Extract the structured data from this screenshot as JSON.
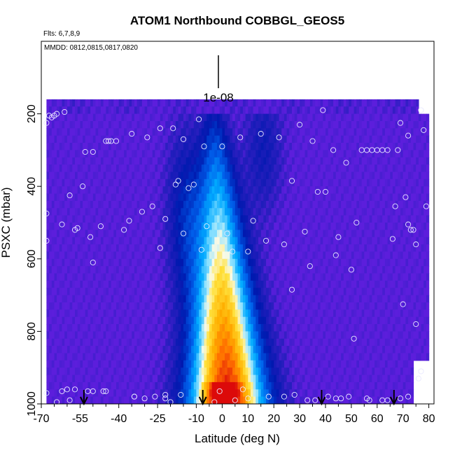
{
  "chart_data": {
    "type": "heatmap",
    "title": "ATOM1 Northbound COBBGL_GEOS5",
    "flights_note": "Flts: 6,7,8,9",
    "dates_note": "MMDD: 0812,0815,0817,0820",
    "scale_label": "1e-08",
    "xlabel": "Latitude (deg N)",
    "ylabel": "PSXC (mbar)",
    "xlim": [
      -70,
      82
    ],
    "ylim": [
      1000,
      0
    ],
    "x_ticks": [
      -70,
      -55,
      -40,
      -25,
      -10,
      0,
      10,
      20,
      30,
      40,
      50,
      60,
      70,
      80
    ],
    "x_tick_labels": [
      "-70",
      "-55",
      "-40",
      "-25",
      "-10",
      "0",
      "10",
      "20",
      "30",
      "40",
      "50",
      "60",
      "70",
      "80"
    ],
    "y_ticks": [
      200,
      400,
      600,
      800,
      1000
    ],
    "y_tick_labels": [
      "200",
      "400",
      "600",
      "800",
      "1000"
    ],
    "arrow_latitudes": [
      -53.5,
      -7.5,
      38.5,
      66.5
    ],
    "colors": {
      "background_purple": "#6a1fe0",
      "low": "#1a1aa8",
      "mid": "#00a0ff",
      "high_yellow": "#ffd200",
      "peak_red": "#e01010"
    },
    "grid": false,
    "legend": "none"
  }
}
